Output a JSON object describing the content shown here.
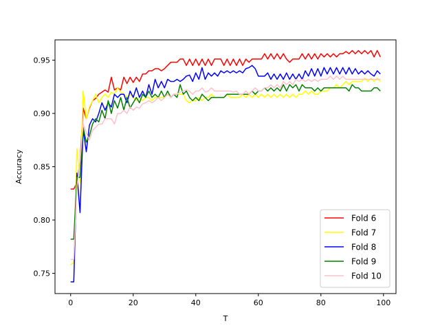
{
  "chart_data": {
    "type": "line",
    "title": "",
    "xlabel": "T",
    "ylabel": "Accuracy",
    "xlim": [
      -5,
      104
    ],
    "ylim": [
      0.731,
      0.969
    ],
    "xticks": [
      0,
      20,
      40,
      60,
      80,
      100
    ],
    "yticks": [
      0.75,
      0.8,
      0.85,
      0.9,
      0.95
    ],
    "grid": false,
    "legend_position": "lower-right",
    "x": [
      0,
      1,
      2,
      3,
      4,
      5,
      6,
      7,
      8,
      9,
      10,
      11,
      12,
      13,
      14,
      15,
      16,
      17,
      18,
      19,
      20,
      21,
      22,
      23,
      24,
      25,
      26,
      27,
      28,
      29,
      30,
      31,
      32,
      33,
      34,
      35,
      36,
      37,
      38,
      39,
      40,
      41,
      42,
      43,
      44,
      45,
      46,
      47,
      48,
      49,
      50,
      51,
      52,
      53,
      54,
      55,
      56,
      57,
      58,
      59,
      60,
      61,
      62,
      63,
      64,
      65,
      66,
      67,
      68,
      69,
      70,
      71,
      72,
      73,
      74,
      75,
      76,
      77,
      78,
      79,
      80,
      81,
      82,
      83,
      84,
      85,
      86,
      87,
      88,
      89,
      90,
      91,
      92,
      93,
      94,
      95,
      96,
      97,
      98,
      99
    ],
    "series": [
      {
        "name": "Fold 6",
        "color": "#ff0000",
        "values": [
          0.829,
          0.829,
          0.835,
          0.855,
          0.905,
          0.895,
          0.905,
          0.912,
          0.914,
          0.918,
          0.92,
          0.922,
          0.92,
          0.934,
          0.922,
          0.924,
          0.922,
          0.934,
          0.928,
          0.934,
          0.929,
          0.934,
          0.93,
          0.937,
          0.937,
          0.94,
          0.94,
          0.942,
          0.942,
          0.94,
          0.942,
          0.945,
          0.948,
          0.948,
          0.948,
          0.951,
          0.951,
          0.945,
          0.951,
          0.945,
          0.951,
          0.945,
          0.951,
          0.945,
          0.951,
          0.945,
          0.951,
          0.951,
          0.951,
          0.945,
          0.951,
          0.945,
          0.951,
          0.945,
          0.951,
          0.945,
          0.951,
          0.948,
          0.951,
          0.951,
          0.951,
          0.951,
          0.956,
          0.951,
          0.956,
          0.951,
          0.956,
          0.951,
          0.956,
          0.951,
          0.948,
          0.951,
          0.951,
          0.951,
          0.956,
          0.951,
          0.956,
          0.951,
          0.956,
          0.951,
          0.956,
          0.953,
          0.956,
          0.953,
          0.956,
          0.953,
          0.956,
          0.956,
          0.958,
          0.956,
          0.959,
          0.956,
          0.959,
          0.956,
          0.959,
          0.956,
          0.959,
          0.953,
          0.959,
          0.953
        ]
      },
      {
        "name": "Fold 7",
        "color": "#ffff00",
        "values": [
          0.758,
          0.76,
          0.867,
          0.835,
          0.921,
          0.895,
          0.906,
          0.912,
          0.918,
          0.91,
          0.915,
          0.918,
          0.915,
          0.92,
          0.918,
          0.924,
          0.92,
          0.918,
          0.915,
          0.918,
          0.915,
          0.912,
          0.915,
          0.912,
          0.915,
          0.915,
          0.912,
          0.915,
          0.915,
          0.915,
          0.915,
          0.918,
          0.915,
          0.918,
          0.918,
          0.918,
          0.918,
          0.912,
          0.91,
          0.912,
          0.912,
          0.915,
          0.912,
          0.915,
          0.915,
          0.918,
          0.915,
          0.915,
          0.915,
          0.915,
          0.918,
          0.915,
          0.915,
          0.915,
          0.915,
          0.918,
          0.915,
          0.918,
          0.915,
          0.918,
          0.915,
          0.918,
          0.915,
          0.918,
          0.915,
          0.918,
          0.915,
          0.918,
          0.915,
          0.918,
          0.915,
          0.918,
          0.915,
          0.918,
          0.918,
          0.921,
          0.918,
          0.921,
          0.918,
          0.918,
          0.921,
          0.921,
          0.921,
          0.924,
          0.924,
          0.927,
          0.924,
          0.927,
          0.93,
          0.927,
          0.93,
          0.93,
          0.93,
          0.93,
          0.933,
          0.93,
          0.933,
          0.93,
          0.933,
          0.93
        ]
      },
      {
        "name": "Fold 8",
        "color": "#0000ff",
        "values": [
          0.742,
          0.742,
          0.844,
          0.807,
          0.885,
          0.864,
          0.889,
          0.895,
          0.892,
          0.9,
          0.91,
          0.903,
          0.91,
          0.906,
          0.918,
          0.915,
          0.918,
          0.918,
          0.91,
          0.921,
          0.915,
          0.924,
          0.915,
          0.921,
          0.915,
          0.927,
          0.918,
          0.932,
          0.924,
          0.93,
          0.924,
          0.932,
          0.93,
          0.93,
          0.932,
          0.93,
          0.932,
          0.935,
          0.936,
          0.93,
          0.938,
          0.932,
          0.943,
          0.932,
          0.938,
          0.935,
          0.938,
          0.935,
          0.94,
          0.938,
          0.94,
          0.938,
          0.94,
          0.938,
          0.94,
          0.938,
          0.942,
          0.943,
          0.945,
          0.942,
          0.935,
          0.935,
          0.935,
          0.938,
          0.932,
          0.937,
          0.932,
          0.937,
          0.932,
          0.938,
          0.932,
          0.937,
          0.932,
          0.937,
          0.932,
          0.94,
          0.935,
          0.942,
          0.935,
          0.942,
          0.935,
          0.943,
          0.937,
          0.943,
          0.937,
          0.943,
          0.937,
          0.943,
          0.937,
          0.943,
          0.937,
          0.942,
          0.937,
          0.94,
          0.937,
          0.94,
          0.937,
          0.935,
          0.94,
          0.937
        ]
      },
      {
        "name": "Fold 9",
        "color": "#008000",
        "values": [
          0.782,
          0.782,
          0.84,
          0.84,
          0.887,
          0.873,
          0.879,
          0.89,
          0.895,
          0.892,
          0.903,
          0.895,
          0.912,
          0.9,
          0.912,
          0.905,
          0.915,
          0.903,
          0.915,
          0.905,
          0.91,
          0.915,
          0.91,
          0.918,
          0.915,
          0.921,
          0.915,
          0.918,
          0.915,
          0.921,
          0.915,
          0.921,
          0.915,
          0.918,
          0.915,
          0.927,
          0.918,
          0.921,
          0.915,
          0.912,
          0.915,
          0.912,
          0.918,
          0.915,
          0.912,
          0.915,
          0.915,
          0.915,
          0.915,
          0.915,
          0.918,
          0.918,
          0.918,
          0.918,
          0.918,
          0.918,
          0.918,
          0.918,
          0.921,
          0.918,
          0.921,
          0.921,
          0.924,
          0.921,
          0.924,
          0.921,
          0.924,
          0.921,
          0.927,
          0.921,
          0.927,
          0.924,
          0.927,
          0.921,
          0.927,
          0.924,
          0.924,
          0.924,
          0.921,
          0.924,
          0.921,
          0.924,
          0.924,
          0.924,
          0.924,
          0.924,
          0.924,
          0.924,
          0.924,
          0.921,
          0.927,
          0.924,
          0.924,
          0.921,
          0.921,
          0.921,
          0.921,
          0.924,
          0.924,
          0.921
        ]
      },
      {
        "name": "Fold 10",
        "color": "#ffc0cb",
        "values": [
          0.763,
          0.763,
          0.83,
          0.855,
          0.89,
          0.882,
          0.875,
          0.884,
          0.887,
          0.89,
          0.89,
          0.895,
          0.895,
          0.895,
          0.89,
          0.9,
          0.9,
          0.903,
          0.9,
          0.906,
          0.903,
          0.906,
          0.905,
          0.909,
          0.91,
          0.912,
          0.91,
          0.912,
          0.915,
          0.912,
          0.915,
          0.918,
          0.915,
          0.918,
          0.918,
          0.92,
          0.921,
          0.922,
          0.921,
          0.918,
          0.921,
          0.921,
          0.924,
          0.92,
          0.921,
          0.924,
          0.921,
          0.921,
          0.921,
          0.921,
          0.921,
          0.921,
          0.92,
          0.921,
          0.918,
          0.918,
          0.921,
          0.918,
          0.921,
          0.924,
          0.921,
          0.921,
          0.924,
          0.924,
          0.927,
          0.924,
          0.927,
          0.924,
          0.93,
          0.927,
          0.93,
          0.927,
          0.932,
          0.93,
          0.932,
          0.93,
          0.932,
          0.93,
          0.932,
          0.93,
          0.932,
          0.932,
          0.932,
          0.935,
          0.932,
          0.935,
          0.932,
          0.935,
          0.932,
          0.932,
          0.932,
          0.932,
          0.932,
          0.932,
          0.932,
          0.932,
          0.932,
          0.932,
          0.932,
          0.932
        ]
      }
    ]
  }
}
